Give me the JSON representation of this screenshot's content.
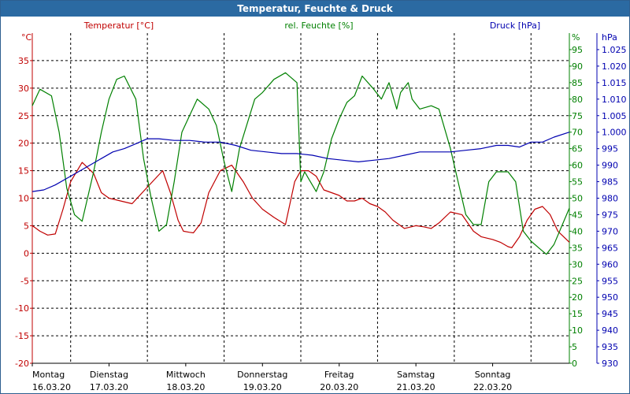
{
  "window": {
    "title": "Temperatur, Feuchte & Druck"
  },
  "colors": {
    "temperature": "#c00000",
    "humidity": "#008000",
    "pressure": "#0000b0",
    "grid": "#000000",
    "titlebar": "#2b6aa2"
  },
  "chart_data": {
    "type": "line",
    "title": "Temperatur, Feuchte & Druck",
    "grid": true,
    "x_ticks": [
      {
        "day": "Montag",
        "date": "16.03.20"
      },
      {
        "day": "Dienstag",
        "date": "17.03.20"
      },
      {
        "day": "Mittwoch",
        "date": "18.03.20"
      },
      {
        "day": "Donnerstag",
        "date": "19.03.20"
      },
      {
        "day": "Freitag",
        "date": "20.03.20"
      },
      {
        "day": "Samstag",
        "date": "21.03.20"
      },
      {
        "day": "Sonntag",
        "date": "22.03.20"
      }
    ],
    "xlim": [
      "16.03.20 00:00",
      "23.03.20 00:00"
    ],
    "axes": {
      "temperature": {
        "unit": "°C",
        "label": "Temperatur [°C]",
        "ylim": [
          -20,
          40
        ],
        "ticks": [
          "-20",
          "-15",
          "-10",
          "-5",
          "0",
          "5",
          "10",
          "15",
          "20",
          "25",
          "30",
          "35"
        ]
      },
      "humidity": {
        "unit": "%",
        "label": "rel. Feuchte [%]",
        "ylim": [
          0,
          100
        ],
        "ticks": [
          "0",
          "5",
          "10",
          "15",
          "20",
          "25",
          "30",
          "35",
          "40",
          "45",
          "50",
          "55",
          "60",
          "65",
          "70",
          "75",
          "80",
          "85",
          "90",
          "95"
        ]
      },
      "pressure": {
        "unit": "hPa",
        "label": "Druck [hPa]",
        "ylim": [
          930,
          1030
        ],
        "ticks": [
          "930",
          "935",
          "940",
          "945",
          "950",
          "955",
          "960",
          "965",
          "970",
          "975",
          "980",
          "985",
          "990",
          "995",
          "1.000",
          "1.005",
          "1.010",
          "1.015",
          "1.020",
          "1.025"
        ]
      }
    },
    "series": [
      {
        "name": "Temperatur [°C]",
        "axis": "temperature",
        "x": [
          0,
          0.1,
          0.2,
          0.3,
          0.4,
          0.5,
          0.65,
          0.8,
          0.9,
          1.0,
          1.15,
          1.3,
          1.5,
          1.7,
          1.8,
          1.9,
          1.97,
          2.05,
          2.1,
          2.2,
          2.3,
          2.45,
          2.6,
          2.75,
          2.87,
          3.0,
          3.15,
          3.3,
          3.42,
          3.5,
          3.6,
          3.7,
          3.8,
          3.9,
          4.0,
          4.1,
          4.2,
          4.3,
          4.4,
          4.5,
          4.6,
          4.7,
          4.85,
          5.0,
          5.1,
          5.2,
          5.3,
          5.45,
          5.6,
          5.75,
          5.85,
          6.0,
          6.1,
          6.2,
          6.25,
          6.35,
          6.45,
          6.55,
          6.65,
          6.75,
          6.85,
          7.0
        ],
        "values": [
          5,
          4,
          3.3,
          3.5,
          8,
          13,
          16.5,
          14.5,
          11,
          10,
          9.5,
          9,
          12,
          15,
          11,
          6,
          4,
          3.8,
          3.7,
          5.5,
          11,
          15,
          16,
          13,
          10,
          8,
          6.5,
          5.2,
          13,
          15,
          15,
          14,
          11.5,
          11,
          10.5,
          9.5,
          9.5,
          10,
          9,
          8.5,
          7.5,
          6,
          4.5,
          5,
          4.8,
          4.5,
          5.5,
          7.5,
          7,
          4,
          3,
          2.5,
          2,
          1.2,
          1,
          3,
          6,
          8,
          8.5,
          7,
          4,
          2
        ]
      },
      {
        "name": "rel. Feuchte [%]",
        "axis": "humidity",
        "x": [
          0,
          0.1,
          0.25,
          0.35,
          0.45,
          0.55,
          0.65,
          0.8,
          0.9,
          1.0,
          1.1,
          1.2,
          1.35,
          1.45,
          1.55,
          1.65,
          1.75,
          1.85,
          1.95,
          2.05,
          2.15,
          2.3,
          2.4,
          2.5,
          2.6,
          2.7,
          2.82,
          2.9,
          3.0,
          3.15,
          3.3,
          3.45,
          3.5,
          3.55,
          3.6,
          3.7,
          3.8,
          3.9,
          4.0,
          4.1,
          4.2,
          4.3,
          4.45,
          4.55,
          4.65,
          4.75,
          4.8,
          4.9,
          4.95,
          5.05,
          5.2,
          5.3,
          5.45,
          5.55,
          5.65,
          5.75,
          5.85,
          5.95,
          6.05,
          6.2,
          6.3,
          6.4,
          6.5,
          6.6,
          6.7,
          6.8,
          7.0
        ],
        "values": [
          78,
          83,
          81,
          70,
          53,
          45,
          43,
          58,
          70,
          80,
          86,
          87,
          80,
          62,
          50,
          40,
          42,
          55,
          70,
          75,
          80,
          77,
          72,
          61,
          52,
          65,
          74,
          80,
          82,
          86,
          88,
          85,
          55,
          58,
          56,
          52,
          58,
          68,
          74,
          79,
          81,
          87,
          83,
          80,
          85,
          77,
          82,
          85,
          80,
          77,
          78,
          77,
          65,
          55,
          45,
          42,
          42,
          55,
          58,
          58,
          55,
          40,
          37,
          35,
          33,
          36,
          47
        ]
      },
      {
        "name": "Druck [hPa]",
        "axis": "pressure",
        "x": [
          0,
          0.15,
          0.3,
          0.45,
          0.6,
          0.75,
          0.9,
          1.05,
          1.2,
          1.35,
          1.5,
          1.65,
          1.85,
          2.05,
          2.25,
          2.45,
          2.65,
          2.85,
          3.05,
          3.25,
          3.45,
          3.65,
          3.85,
          4.05,
          4.25,
          4.45,
          4.65,
          4.85,
          5.05,
          5.25,
          5.45,
          5.65,
          5.85,
          6.05,
          6.2,
          6.35,
          6.5,
          6.65,
          6.8,
          7.0
        ],
        "values": [
          982,
          982.5,
          984,
          986,
          988,
          990,
          992,
          994,
          995,
          996.5,
          998,
          998,
          997.5,
          997.5,
          997,
          997,
          996,
          994.5,
          994,
          993.5,
          993.5,
          993,
          992,
          991.5,
          991,
          991.5,
          992,
          993,
          994,
          994,
          994,
          994.5,
          995,
          996,
          996,
          995.5,
          997,
          997,
          998.5,
          1000
        ]
      }
    ]
  }
}
